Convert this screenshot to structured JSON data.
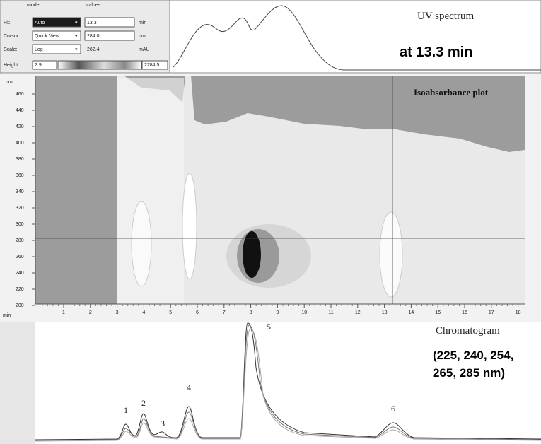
{
  "panel": {
    "headers": [
      "mode",
      "values"
    ],
    "rows": [
      {
        "label": "Fit:",
        "mode": "Auto",
        "value": "13.3",
        "unit": "min"
      },
      {
        "label": "Cursor:",
        "mode": "Quick View",
        "value": "284.0",
        "unit": "nm"
      },
      {
        "label": "Scale:",
        "mode": "Log",
        "value": "262.4",
        "unit": "mAU"
      }
    ],
    "height": {
      "label": "Height:",
      "min": "2.9",
      "max": "2784.5"
    }
  },
  "uv_spectrum": {
    "title": "UV spectrum",
    "subtitle": "at 13.3 min"
  },
  "isoabsorbance": {
    "title": "Isoabsorbance plot",
    "y_unit": "nm",
    "x_unit": "min",
    "yticks": [
      460,
      440,
      420,
      400,
      380,
      360,
      340,
      320,
      300,
      280,
      260,
      240,
      220,
      200
    ],
    "xticks": [
      1,
      2,
      3,
      4,
      5,
      6,
      7,
      8,
      9,
      10,
      11,
      12,
      13,
      14,
      15,
      16,
      17,
      18
    ]
  },
  "chromatogram": {
    "title": "Chromatogram",
    "wavelengths_line1": "(225, 240, 254,",
    "wavelengths_line2": "265, 285 nm)",
    "peaks": [
      "1",
      "2",
      "3",
      "4",
      "5",
      "6"
    ]
  }
}
